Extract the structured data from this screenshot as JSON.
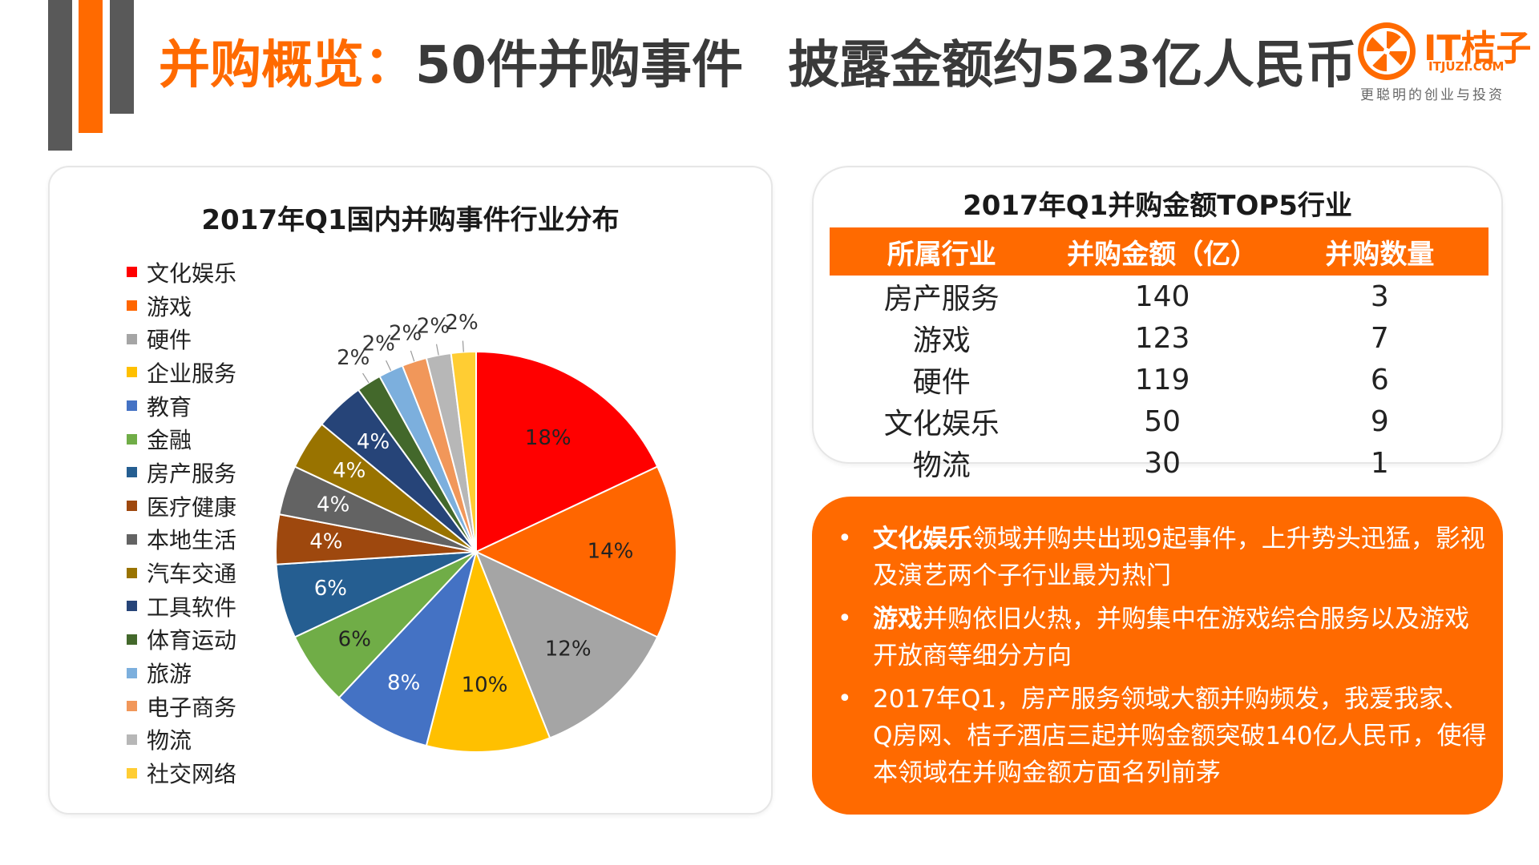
{
  "header": {
    "title_accent": "并购概览：",
    "title_part1": "50件并购事件",
    "title_part2": "披露金额约523亿人民币",
    "logo": {
      "brand": "IT桔子",
      "domain": "ITJUZI.COM",
      "slogan": "更聪明的创业与投资"
    }
  },
  "colors": {
    "accent": "#ff6a00",
    "dark_gray": "#595959"
  },
  "chart_data": {
    "type": "pie",
    "title": "2017年Q1国内并购事件行业分布",
    "labels": [
      "文化娱乐",
      "游戏",
      "硬件",
      "企业服务",
      "教育",
      "金融",
      "房产服务",
      "医疗健康",
      "本地生活",
      "汽车交通",
      "工具软件",
      "体育运动",
      "旅游",
      "电子商务",
      "物流",
      "社交网络"
    ],
    "values": [
      18,
      14,
      12,
      10,
      8,
      6,
      6,
      4,
      4,
      4,
      4,
      2,
      2,
      2,
      2,
      2
    ],
    "value_labels": [
      "18%",
      "14%",
      "12%",
      "10%",
      "8%",
      "6%",
      "6%",
      "4%",
      "4%",
      "4%",
      "4%",
      "2%",
      "2%",
      "2%",
      "2%",
      "2%"
    ],
    "colors": [
      "#ff0000",
      "#ff6600",
      "#a5a5a5",
      "#ffc000",
      "#4472c4",
      "#70ad47",
      "#255e91",
      "#9e480e",
      "#636363",
      "#997300",
      "#264478",
      "#43682b",
      "#7cafdd",
      "#f1975a",
      "#b7b7b7",
      "#ffcd33"
    ],
    "legend_position": "left"
  },
  "top5_table": {
    "title": "2017年Q1并购金额TOP5行业",
    "headers": [
      "所属行业",
      "并购金额（亿）",
      "并购数量"
    ],
    "rows": [
      [
        "房产服务",
        "140",
        "3"
      ],
      [
        "游戏",
        "123",
        "7"
      ],
      [
        "硬件",
        "119",
        "6"
      ],
      [
        "文化娱乐",
        "50",
        "9"
      ],
      [
        "物流",
        "30",
        "1"
      ]
    ]
  },
  "summary": {
    "bullets": [
      {
        "bold": "文化娱乐",
        "text": "领域并购共出现9起事件，上升势头迅猛，影视及演艺两个子行业最为热门"
      },
      {
        "bold": "游戏",
        "text": "并购依旧火热，并购集中在游戏综合服务以及游戏开放商等细分方向"
      },
      {
        "bold": "",
        "text": "2017年Q1，房产服务领域大额并购频发，我爱我家、Q房网、桔子酒店三起并购金额突破140亿人民币，使得本领域在并购金额方面名列前茅"
      }
    ]
  }
}
